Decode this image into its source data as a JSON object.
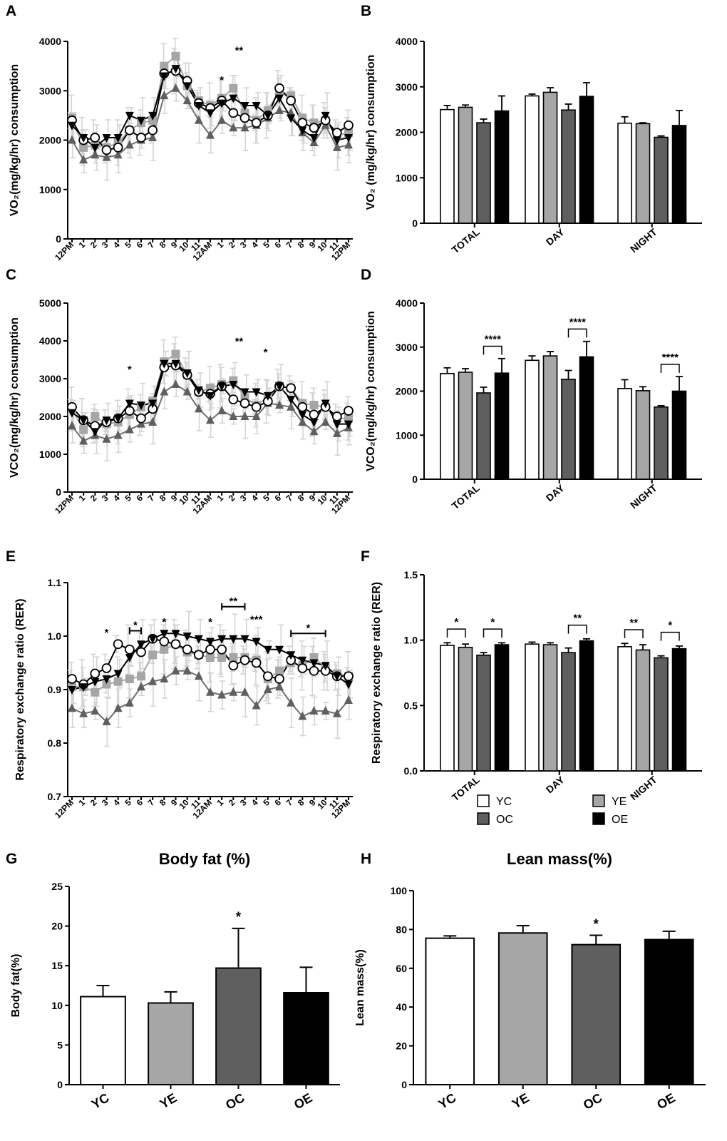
{
  "colors": {
    "YC": "#ffffff",
    "YE": "#a6a6a6",
    "OC": "#5f5f5f",
    "OE": "#000000"
  },
  "panel_letters": [
    "A",
    "B",
    "C",
    "D",
    "E",
    "F",
    "G",
    "H"
  ],
  "legend": {
    "items": [
      "YC",
      "YE",
      "OC",
      "OE"
    ]
  },
  "chart_data": [
    {
      "panel": "A",
      "type": "line",
      "ylabel": "VO₂(mg/kg/hr) consumption",
      "ylim": [
        0,
        4000
      ],
      "yticks": [
        "0",
        "1000",
        "2000",
        "3000",
        "4000"
      ],
      "xticks": [
        "12PM",
        "1",
        "2",
        "3",
        "4",
        "5",
        "6",
        "7",
        "8",
        "9",
        "10",
        "11",
        "12AM",
        "1",
        "2",
        "3",
        "4",
        "5",
        "6",
        "7",
        "8",
        "9",
        "10",
        "11",
        "12PM"
      ],
      "series": [
        {
          "name": "YC",
          "values": [
            2400,
            2000,
            2050,
            1800,
            1850,
            2200,
            2050,
            2200,
            3350,
            3400,
            3200,
            2750,
            2650,
            2800,
            2550,
            2450,
            2350,
            2500,
            3050,
            2800,
            2350,
            2250,
            2400,
            2150,
            2300
          ]
        },
        {
          "name": "YE",
          "values": [
            2450,
            1850,
            1900,
            1850,
            1950,
            2200,
            2350,
            2400,
            3500,
            3700,
            3100,
            2800,
            2700,
            2850,
            3050,
            2550,
            2400,
            2600,
            3000,
            2900,
            2450,
            2350,
            2400,
            2100,
            2150
          ]
        },
        {
          "name": "OC",
          "values": [
            2000,
            1600,
            1700,
            1650,
            1700,
            1900,
            2000,
            2050,
            2900,
            3050,
            2800,
            2400,
            2100,
            2400,
            2250,
            2250,
            2300,
            2450,
            2600,
            2550,
            2150,
            1950,
            2300,
            1850,
            1900
          ]
        },
        {
          "name": "OE",
          "values": [
            2300,
            2050,
            1850,
            2050,
            2050,
            2500,
            2400,
            2500,
            3300,
            3450,
            3100,
            2700,
            2550,
            2750,
            2850,
            2700,
            2700,
            2500,
            2850,
            2450,
            2200,
            2050,
            2500,
            2000,
            2050
          ]
        }
      ],
      "annotations": [
        {
          "text": "*",
          "x": 13,
          "y": 3150
        },
        {
          "text": "**",
          "x": 14.5,
          "y": 3750
        }
      ]
    },
    {
      "panel": "B",
      "type": "bar",
      "ylabel": "VO₂ (mg/kg/hr) consumption",
      "ylim": [
        0,
        4000
      ],
      "yticks": [
        "0",
        "1000",
        "2000",
        "3000",
        "4000"
      ],
      "categories": [
        "TOTAL",
        "DAY",
        "NIGHT"
      ],
      "series": [
        {
          "name": "YC",
          "values": [
            2500,
            2800,
            2200
          ],
          "errors": [
            90,
            40,
            140
          ]
        },
        {
          "name": "YE",
          "values": [
            2550,
            2880,
            2190
          ],
          "errors": [
            50,
            100,
            20
          ]
        },
        {
          "name": "OC",
          "values": [
            2210,
            2490,
            1890
          ],
          "errors": [
            80,
            130,
            30
          ]
        },
        {
          "name": "OE",
          "values": [
            2470,
            2790,
            2150
          ],
          "errors": [
            330,
            300,
            330
          ]
        }
      ],
      "annotations": []
    },
    {
      "panel": "C",
      "type": "line",
      "ylabel": "VCO₂(mg/kg/hr) consumption",
      "ylim": [
        0,
        5000
      ],
      "yticks": [
        "0",
        "1000",
        "2000",
        "3000",
        "4000",
        "5000"
      ],
      "xticks": [
        "12PM",
        "1",
        "2",
        "3",
        "4",
        "5",
        "6",
        "7",
        "8",
        "9",
        "10",
        "11",
        "12AM",
        "1",
        "2",
        "3",
        "4",
        "5",
        "6",
        "7",
        "8",
        "9",
        "10",
        "11",
        "12PM"
      ],
      "series": [
        {
          "name": "YC",
          "values": [
            2250,
            1900,
            1750,
            1850,
            1950,
            2150,
            1950,
            2200,
            3300,
            3350,
            3100,
            2650,
            2600,
            2800,
            2450,
            2350,
            2250,
            2400,
            2800,
            2750,
            2250,
            2050,
            2250,
            2000,
            2150
          ]
        },
        {
          "name": "YE",
          "values": [
            2200,
            1650,
            2000,
            1800,
            1850,
            2050,
            2250,
            2400,
            3450,
            3650,
            3100,
            2650,
            2750,
            2850,
            2950,
            2500,
            2300,
            2500,
            2800,
            2750,
            2350,
            2300,
            2250,
            1950,
            1950
          ]
        },
        {
          "name": "OC",
          "values": [
            1750,
            1350,
            1500,
            1400,
            1500,
            1650,
            1800,
            1850,
            2650,
            2850,
            2650,
            2200,
            1900,
            2150,
            2000,
            2000,
            2000,
            2350,
            2300,
            2250,
            1850,
            1600,
            1850,
            1550,
            1700
          ]
        },
        {
          "name": "OE",
          "values": [
            2100,
            1900,
            1600,
            1900,
            1950,
            2350,
            2300,
            2350,
            3400,
            3400,
            3150,
            2700,
            2550,
            2800,
            2850,
            2650,
            2650,
            2550,
            2800,
            2450,
            2050,
            1850,
            2350,
            1800,
            1800
          ]
        }
      ],
      "annotations": [
        {
          "text": "*",
          "x": 5,
          "y": 3150
        },
        {
          "text": "**",
          "x": 14.5,
          "y": 3900
        },
        {
          "text": "*",
          "x": 16.8,
          "y": 3600
        }
      ]
    },
    {
      "panel": "D",
      "type": "bar",
      "ylabel": "VCO₂(mg/kg/hr) consumption",
      "ylim": [
        0,
        4000
      ],
      "yticks": [
        "0",
        "1000",
        "2000",
        "3000",
        "4000"
      ],
      "categories": [
        "TOTAL",
        "DAY",
        "NIGHT"
      ],
      "series": [
        {
          "name": "YC",
          "values": [
            2400,
            2700,
            2060
          ],
          "errors": [
            130,
            100,
            200
          ]
        },
        {
          "name": "YE",
          "values": [
            2430,
            2800,
            2010
          ],
          "errors": [
            80,
            100,
            90
          ]
        },
        {
          "name": "OC",
          "values": [
            1960,
            2270,
            1640
          ],
          "errors": [
            130,
            200,
            30
          ]
        },
        {
          "name": "OE",
          "values": [
            2410,
            2780,
            2000
          ],
          "errors": [
            330,
            350,
            330
          ]
        }
      ],
      "annotations": [
        {
          "text": "****",
          "between": [
            "OC",
            "OE"
          ],
          "category": 0
        },
        {
          "text": "****",
          "between": [
            "OC",
            "OE"
          ],
          "category": 1
        },
        {
          "text": "****",
          "between": [
            "OC",
            "OE"
          ],
          "category": 2
        }
      ]
    },
    {
      "panel": "E",
      "type": "line",
      "ylabel": "Respiratory exchange ratio (RER)",
      "ylim": [
        0.7,
        1.1
      ],
      "yticks": [
        "0.7",
        "0.8",
        "0.9",
        "1.0",
        "1.1"
      ],
      "xticks": [
        "12PM",
        "1",
        "2",
        "3",
        "4",
        "5",
        "6",
        "7",
        "8",
        "9",
        "10",
        "11",
        "12AM",
        "1",
        "2",
        "3",
        "4",
        "5",
        "6",
        "7",
        "8",
        "9",
        "10",
        "11",
        "12PM"
      ],
      "series": [
        {
          "name": "YC",
          "values": [
            0.92,
            0.91,
            0.93,
            0.94,
            0.985,
            0.975,
            0.97,
            0.995,
            0.99,
            0.985,
            0.975,
            0.965,
            0.975,
            0.975,
            0.945,
            0.955,
            0.95,
            0.925,
            0.92,
            0.955,
            0.94,
            0.935,
            0.935,
            0.925,
            0.925
          ]
        },
        {
          "name": "YE",
          "values": [
            0.905,
            0.905,
            0.895,
            0.91,
            0.915,
            0.92,
            0.925,
            0.965,
            0.975,
            0.985,
            0.97,
            0.965,
            0.96,
            0.96,
            0.96,
            0.96,
            0.955,
            0.92,
            0.935,
            0.95,
            0.945,
            0.96,
            0.94,
            0.93,
            0.925
          ]
        },
        {
          "name": "OC",
          "values": [
            0.865,
            0.855,
            0.86,
            0.84,
            0.865,
            0.875,
            0.905,
            0.915,
            0.92,
            0.935,
            0.935,
            0.925,
            0.895,
            0.89,
            0.895,
            0.895,
            0.87,
            0.9,
            0.905,
            0.875,
            0.85,
            0.86,
            0.86,
            0.855,
            0.88
          ]
        },
        {
          "name": "OE",
          "values": [
            0.9,
            0.905,
            0.915,
            0.92,
            0.93,
            0.96,
            0.985,
            0.995,
            1.005,
            1.005,
            1.0,
            0.995,
            0.99,
            0.995,
            0.995,
            0.995,
            0.99,
            0.975,
            0.975,
            0.965,
            0.955,
            0.95,
            0.945,
            0.925,
            0.91
          ]
        }
      ],
      "annotations": [
        {
          "text": "*",
          "x": 3,
          "y": 1.0
        },
        {
          "text": "*",
          "x1": 5,
          "x2": 6,
          "y": 1.01
        },
        {
          "text": "*",
          "x": 8,
          "y": 1.02
        },
        {
          "text": "*",
          "x": 12,
          "y": 1.02
        },
        {
          "text": "**",
          "x1": 13,
          "x2": 15,
          "y": 1.055
        },
        {
          "text": "***",
          "x": 16,
          "y": 1.025
        },
        {
          "text": "*",
          "x1": 19,
          "x2": 22,
          "y": 1.005
        }
      ]
    },
    {
      "panel": "F",
      "type": "bar",
      "ylabel": "Respiratory exchange ratio (RER)",
      "ylim": [
        0,
        1.5
      ],
      "yticks": [
        "0.0",
        "0.5",
        "1.0",
        "1.5"
      ],
      "categories": [
        "TOTAL",
        "DAY",
        "NIGHT"
      ],
      "series": [
        {
          "name": "YC",
          "values": [
            0.96,
            0.97,
            0.95
          ],
          "errors": [
            0.02,
            0.015,
            0.025
          ]
        },
        {
          "name": "YE",
          "values": [
            0.945,
            0.965,
            0.925
          ],
          "errors": [
            0.025,
            0.015,
            0.04
          ]
        },
        {
          "name": "OC",
          "values": [
            0.885,
            0.905,
            0.865
          ],
          "errors": [
            0.02,
            0.035,
            0.015
          ]
        },
        {
          "name": "OE",
          "values": [
            0.965,
            0.995,
            0.935
          ],
          "errors": [
            0.015,
            0.015,
            0.02
          ]
        }
      ],
      "annotations": [
        {
          "text": "*",
          "between": [
            "YC",
            "YE"
          ],
          "category": 0
        },
        {
          "text": "*",
          "between": [
            "OC",
            "OE"
          ],
          "category": 0
        },
        {
          "text": "**",
          "between": [
            "OC",
            "OE"
          ],
          "category": 1
        },
        {
          "text": "**",
          "between": [
            "YC",
            "YE"
          ],
          "category": 2
        },
        {
          "text": "*",
          "between": [
            "OC",
            "OE"
          ],
          "category": 2
        }
      ]
    },
    {
      "panel": "G",
      "type": "bar",
      "title": "Body fat (%)",
      "ylabel": "Body fat(%)",
      "ylim": [
        0,
        25
      ],
      "yticks": [
        "0",
        "5",
        "10",
        "15",
        "20",
        "25"
      ],
      "categories": [
        "YC",
        "YE",
        "OC",
        "OE"
      ],
      "values": [
        11.1,
        10.3,
        14.7,
        11.6
      ],
      "errors": [
        1.4,
        1.4,
        5.0,
        3.2
      ],
      "annotations": [
        {
          "text": "*",
          "category": 2
        }
      ]
    },
    {
      "panel": "H",
      "type": "bar",
      "title": "Lean mass(%)",
      "ylabel": "Lean mass(%)",
      "ylim": [
        0,
        100
      ],
      "yticks": [
        "0",
        "20",
        "40",
        "60",
        "80",
        "100"
      ],
      "categories": [
        "YC",
        "YE",
        "OC",
        "OE"
      ],
      "values": [
        75.5,
        78.2,
        72.2,
        74.8
      ],
      "errors": [
        1.2,
        3.8,
        4.8,
        4.3
      ],
      "annotations": [
        {
          "text": "*",
          "category": 2
        }
      ]
    }
  ]
}
